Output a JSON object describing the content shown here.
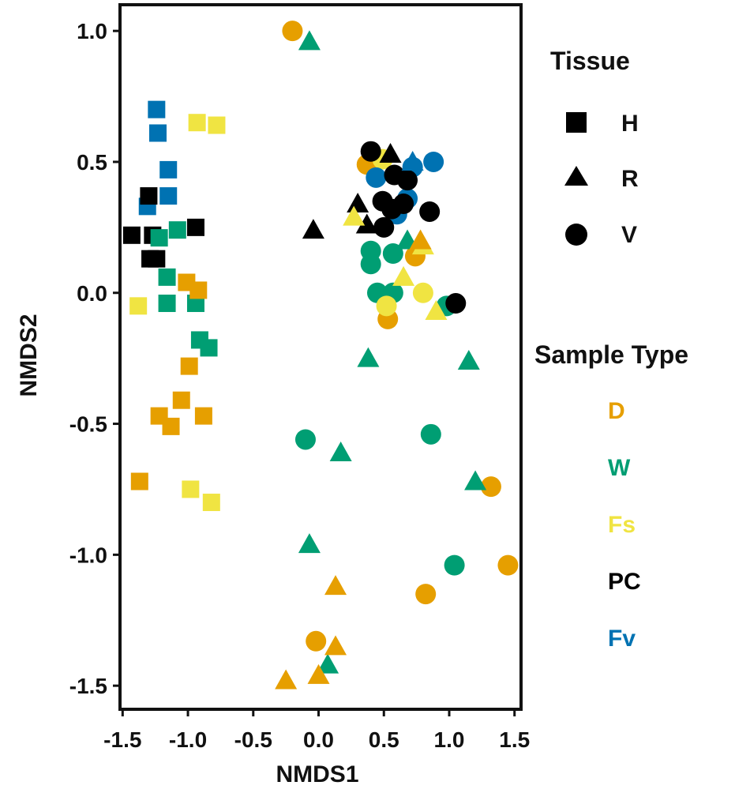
{
  "chart_data": {
    "type": "scatter",
    "title": "",
    "xlabel": "NMDS1",
    "ylabel": "NMDS2",
    "xlim": [
      -1.52,
      1.55
    ],
    "ylim": [
      -1.59,
      1.1
    ],
    "xticks": [
      -1.5,
      -1.0,
      -0.5,
      0.0,
      0.5,
      1.0,
      1.5
    ],
    "xtick_labels": [
      "-1.5",
      "-1.0",
      "-0.5",
      "0.0",
      "0.5",
      "1.0",
      "1.5"
    ],
    "yticks": [
      1.0,
      0.5,
      0.0,
      -0.5,
      -1.0,
      -1.5
    ],
    "ytick_labels": [
      "1.0",
      "0.5",
      "0.0",
      "-0.5",
      "-1.0",
      "-1.5"
    ],
    "grid": false,
    "legend": {
      "position": "right",
      "tissue_title": "Tissue",
      "tissue": [
        {
          "label": "H",
          "shape": "square"
        },
        {
          "label": "R",
          "shape": "triangle"
        },
        {
          "label": "V",
          "shape": "circle"
        }
      ],
      "sample_type_title": "Sample Type",
      "sample_types": [
        {
          "label": "D",
          "color": "#E69F00"
        },
        {
          "label": "W",
          "color": "#009E73"
        },
        {
          "label": "Fs",
          "color": "#F0E442"
        },
        {
          "label": "PC",
          "color": "#000000"
        },
        {
          "label": "Fv",
          "color": "#0072B2"
        }
      ]
    },
    "points": [
      {
        "x": -1.24,
        "y": 0.7,
        "tissue": "H",
        "type": "Fv"
      },
      {
        "x": -1.23,
        "y": 0.61,
        "tissue": "H",
        "type": "Fv"
      },
      {
        "x": -1.15,
        "y": 0.47,
        "tissue": "H",
        "type": "Fv"
      },
      {
        "x": -1.15,
        "y": 0.37,
        "tissue": "H",
        "type": "Fv"
      },
      {
        "x": -1.31,
        "y": 0.33,
        "tissue": "H",
        "type": "Fv"
      },
      {
        "x": -1.3,
        "y": 0.37,
        "tissue": "H",
        "type": "PC"
      },
      {
        "x": -1.43,
        "y": 0.22,
        "tissue": "H",
        "type": "PC"
      },
      {
        "x": -1.27,
        "y": 0.22,
        "tissue": "H",
        "type": "PC"
      },
      {
        "x": -0.94,
        "y": 0.25,
        "tissue": "H",
        "type": "PC"
      },
      {
        "x": -1.29,
        "y": 0.13,
        "tissue": "H",
        "type": "PC"
      },
      {
        "x": -1.24,
        "y": 0.13,
        "tissue": "H",
        "type": "PC"
      },
      {
        "x": -1.22,
        "y": 0.21,
        "tissue": "H",
        "type": "W"
      },
      {
        "x": -1.08,
        "y": 0.24,
        "tissue": "H",
        "type": "W"
      },
      {
        "x": -1.16,
        "y": 0.06,
        "tissue": "H",
        "type": "W"
      },
      {
        "x": -1.16,
        "y": -0.04,
        "tissue": "H",
        "type": "W"
      },
      {
        "x": -0.94,
        "y": -0.04,
        "tissue": "H",
        "type": "W"
      },
      {
        "x": -0.91,
        "y": -0.18,
        "tissue": "H",
        "type": "W"
      },
      {
        "x": -0.84,
        "y": -0.21,
        "tissue": "H",
        "type": "W"
      },
      {
        "x": -0.93,
        "y": 0.65,
        "tissue": "H",
        "type": "Fs"
      },
      {
        "x": -0.78,
        "y": 0.64,
        "tissue": "H",
        "type": "Fs"
      },
      {
        "x": -1.38,
        "y": -0.05,
        "tissue": "H",
        "type": "Fs"
      },
      {
        "x": -0.98,
        "y": -0.75,
        "tissue": "H",
        "type": "Fs"
      },
      {
        "x": -0.82,
        "y": -0.8,
        "tissue": "H",
        "type": "Fs"
      },
      {
        "x": -1.01,
        "y": 0.04,
        "tissue": "H",
        "type": "D"
      },
      {
        "x": -0.92,
        "y": 0.01,
        "tissue": "H",
        "type": "D"
      },
      {
        "x": -0.99,
        "y": -0.28,
        "tissue": "H",
        "type": "D"
      },
      {
        "x": -1.22,
        "y": -0.47,
        "tissue": "H",
        "type": "D"
      },
      {
        "x": -1.05,
        "y": -0.41,
        "tissue": "H",
        "type": "D"
      },
      {
        "x": -0.88,
        "y": -0.47,
        "tissue": "H",
        "type": "D"
      },
      {
        "x": -1.13,
        "y": -0.51,
        "tissue": "H",
        "type": "D"
      },
      {
        "x": -1.37,
        "y": -0.72,
        "tissue": "H",
        "type": "D"
      },
      {
        "x": -0.2,
        "y": 1.0,
        "tissue": "V",
        "type": "D"
      },
      {
        "x": 0.37,
        "y": 0.49,
        "tissue": "V",
        "type": "D"
      },
      {
        "x": 0.53,
        "y": -0.1,
        "tissue": "V",
        "type": "D"
      },
      {
        "x": 0.74,
        "y": 0.14,
        "tissue": "V",
        "type": "D"
      },
      {
        "x": 1.32,
        "y": -0.74,
        "tissue": "V",
        "type": "D"
      },
      {
        "x": 1.45,
        "y": -1.04,
        "tissue": "V",
        "type": "D"
      },
      {
        "x": 0.82,
        "y": -1.15,
        "tissue": "V",
        "type": "D"
      },
      {
        "x": -0.02,
        "y": -1.33,
        "tissue": "V",
        "type": "D"
      },
      {
        "x": 0.4,
        "y": 0.16,
        "tissue": "V",
        "type": "W"
      },
      {
        "x": 0.4,
        "y": 0.11,
        "tissue": "V",
        "type": "W"
      },
      {
        "x": 0.45,
        "y": 0.0,
        "tissue": "V",
        "type": "W"
      },
      {
        "x": 0.57,
        "y": 0.15,
        "tissue": "V",
        "type": "W"
      },
      {
        "x": 0.57,
        "y": 0.0,
        "tissue": "V",
        "type": "W"
      },
      {
        "x": 0.98,
        "y": -0.05,
        "tissue": "V",
        "type": "W"
      },
      {
        "x": -0.1,
        "y": -0.56,
        "tissue": "V",
        "type": "W"
      },
      {
        "x": 0.86,
        "y": -0.54,
        "tissue": "V",
        "type": "W"
      },
      {
        "x": 1.04,
        "y": -1.04,
        "tissue": "V",
        "type": "W"
      },
      {
        "x": 0.49,
        "y": 0.51,
        "tissue": "V",
        "type": "Fs"
      },
      {
        "x": 0.52,
        "y": -0.05,
        "tissue": "V",
        "type": "Fs"
      },
      {
        "x": 0.8,
        "y": 0.0,
        "tissue": "V",
        "type": "Fs"
      },
      {
        "x": 0.44,
        "y": 0.44,
        "tissue": "V",
        "type": "Fv"
      },
      {
        "x": 0.6,
        "y": 0.3,
        "tissue": "V",
        "type": "Fv"
      },
      {
        "x": 0.72,
        "y": 0.48,
        "tissue": "V",
        "type": "Fv"
      },
      {
        "x": 0.88,
        "y": 0.5,
        "tissue": "V",
        "type": "Fv"
      },
      {
        "x": 0.68,
        "y": 0.36,
        "tissue": "V",
        "type": "Fv"
      },
      {
        "x": 0.4,
        "y": 0.54,
        "tissue": "V",
        "type": "PC"
      },
      {
        "x": 0.58,
        "y": 0.45,
        "tissue": "V",
        "type": "PC"
      },
      {
        "x": 0.68,
        "y": 0.43,
        "tissue": "V",
        "type": "PC"
      },
      {
        "x": 0.49,
        "y": 0.35,
        "tissue": "V",
        "type": "PC"
      },
      {
        "x": 0.56,
        "y": 0.32,
        "tissue": "V",
        "type": "PC"
      },
      {
        "x": 0.65,
        "y": 0.34,
        "tissue": "V",
        "type": "PC"
      },
      {
        "x": 0.85,
        "y": 0.31,
        "tissue": "V",
        "type": "PC"
      },
      {
        "x": 0.5,
        "y": 0.25,
        "tissue": "V",
        "type": "PC"
      },
      {
        "x": 1.05,
        "y": -0.04,
        "tissue": "V",
        "type": "PC"
      },
      {
        "x": -0.07,
        "y": 0.96,
        "tissue": "R",
        "type": "W"
      },
      {
        "x": 0.68,
        "y": 0.2,
        "tissue": "R",
        "type": "W"
      },
      {
        "x": 0.38,
        "y": -0.25,
        "tissue": "R",
        "type": "W"
      },
      {
        "x": 1.15,
        "y": -0.26,
        "tissue": "R",
        "type": "W"
      },
      {
        "x": 0.17,
        "y": -0.61,
        "tissue": "R",
        "type": "W"
      },
      {
        "x": 1.2,
        "y": -0.72,
        "tissue": "R",
        "type": "W"
      },
      {
        "x": -0.07,
        "y": -0.96,
        "tissue": "R",
        "type": "W"
      },
      {
        "x": 0.07,
        "y": -1.42,
        "tissue": "R",
        "type": "W"
      },
      {
        "x": -0.04,
        "y": 0.24,
        "tissue": "R",
        "type": "PC"
      },
      {
        "x": 0.3,
        "y": 0.34,
        "tissue": "R",
        "type": "PC"
      },
      {
        "x": 0.37,
        "y": 0.26,
        "tissue": "R",
        "type": "PC"
      },
      {
        "x": 0.55,
        "y": 0.53,
        "tissue": "R",
        "type": "PC"
      },
      {
        "x": 0.27,
        "y": 0.29,
        "tissue": "R",
        "type": "Fs"
      },
      {
        "x": 0.65,
        "y": 0.06,
        "tissue": "R",
        "type": "Fs"
      },
      {
        "x": 0.9,
        "y": -0.07,
        "tissue": "R",
        "type": "Fs"
      },
      {
        "x": 0.8,
        "y": 0.18,
        "tissue": "R",
        "type": "Fs"
      },
      {
        "x": 0.78,
        "y": 0.2,
        "tissue": "R",
        "type": "D"
      },
      {
        "x": 0.13,
        "y": -1.12,
        "tissue": "R",
        "type": "D"
      },
      {
        "x": 0.13,
        "y": -1.35,
        "tissue": "R",
        "type": "D"
      },
      {
        "x": -0.25,
        "y": -1.48,
        "tissue": "R",
        "type": "D"
      },
      {
        "x": 0.0,
        "y": -1.46,
        "tissue": "R",
        "type": "D"
      },
      {
        "x": 0.72,
        "y": 0.5,
        "tissue": "R",
        "type": "Fv"
      }
    ]
  }
}
